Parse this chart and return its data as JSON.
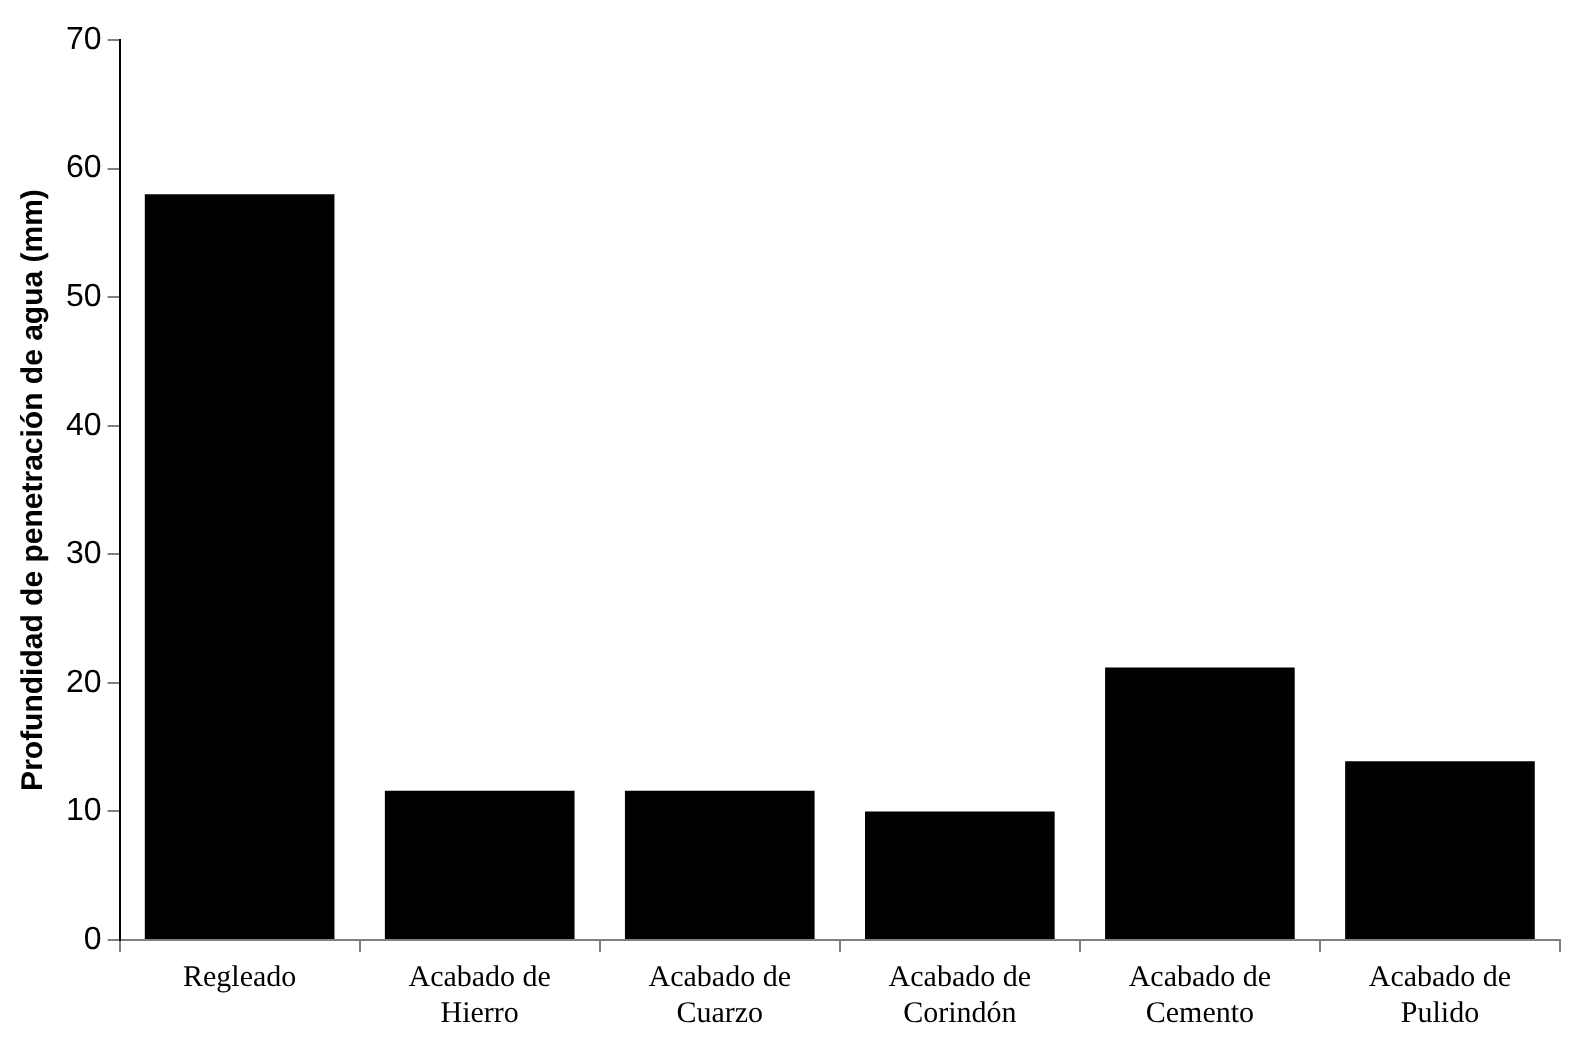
{
  "chart_data": {
    "type": "bar",
    "ylabel": "Profundidad de penetración de agua (mm)",
    "categories": [
      "Regleado",
      "Acabado de Hierro",
      "Acabado de Cuarzo",
      "Acabado de Corindón",
      "Acabado de Cemento",
      "Acabado de Pulido"
    ],
    "values": [
      58,
      11.6,
      11.6,
      10,
      21.2,
      13.9
    ],
    "color": "#000000",
    "ylim": [
      0,
      70
    ],
    "yticks": [
      0,
      10,
      20,
      30,
      40,
      50,
      60,
      70
    ],
    "grid": false,
    "legend": false
  }
}
